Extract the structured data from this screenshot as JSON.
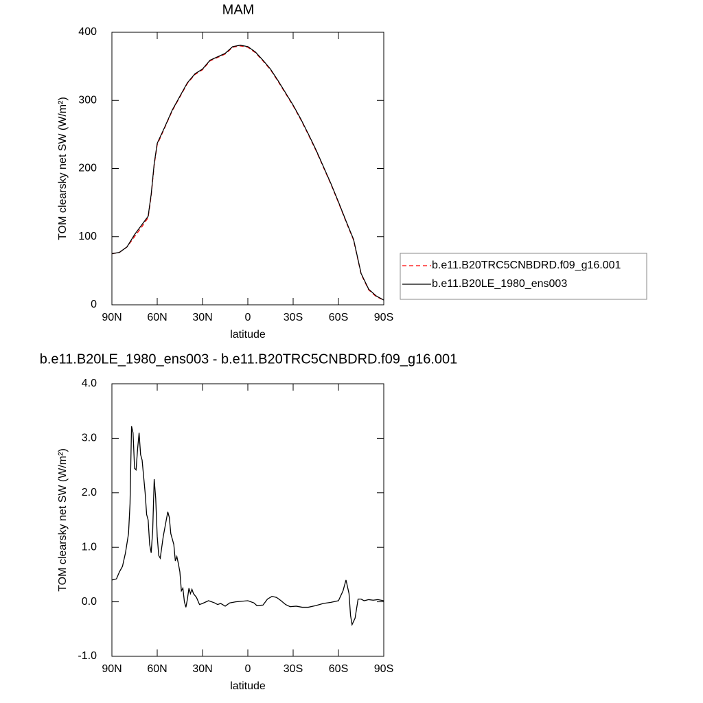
{
  "chart_data": [
    {
      "type": "line",
      "title": "MAM",
      "x_label": "latitude",
      "y_label": "TOM clearsky net SW (W/m²)",
      "xlim": [
        90,
        -90
      ],
      "xticks": [
        {
          "value": 90,
          "label": "90N"
        },
        {
          "value": 60,
          "label": "60N"
        },
        {
          "value": 30,
          "label": "30N"
        },
        0,
        {
          "value": -30,
          "label": "30S"
        },
        {
          "value": -60,
          "label": "60S"
        },
        {
          "value": -90,
          "label": "90S"
        }
      ],
      "ylim": [
        0,
        400
      ],
      "yticks": [
        0,
        100,
        200,
        300,
        400
      ],
      "legend": "right",
      "x": [
        90,
        85,
        80,
        75,
        70,
        66,
        64,
        62,
        60,
        55,
        50,
        45,
        40,
        35,
        30,
        25,
        20,
        15,
        10,
        5,
        0,
        -5,
        -10,
        -15,
        -20,
        -25,
        -30,
        -35,
        -40,
        -45,
        -50,
        -55,
        -60,
        -65,
        -70,
        -72,
        -75,
        -80,
        -85,
        -90
      ],
      "series": [
        {
          "name": "b.e11.B20TRC5CNBDRD.f09_g16.001",
          "color": "#ff0000",
          "line_style": "dashed",
          "values": [
            75,
            77,
            85,
            100,
            115,
            128,
            160,
            205,
            235,
            260,
            285,
            305,
            325,
            338,
            345,
            358,
            363,
            368,
            378,
            380,
            378,
            370,
            358,
            345,
            328,
            310,
            292,
            272,
            250,
            227,
            202,
            177,
            150,
            122,
            95,
            75,
            45,
            22,
            12,
            7
          ]
        },
        {
          "name": "b.e11.B20LE_1980_ens003",
          "color": "#000000",
          "line_style": "solid",
          "values": [
            75,
            77,
            85,
            103,
            118,
            130,
            162,
            207,
            237,
            261,
            286,
            306,
            326,
            339,
            346,
            359,
            364,
            369,
            379,
            381,
            379,
            371,
            359,
            346,
            329,
            311,
            293,
            273,
            251,
            228,
            203,
            178,
            151,
            123,
            96,
            76,
            46,
            23,
            13,
            7
          ]
        }
      ]
    },
    {
      "type": "line",
      "title": "b.e11.B20LE_1980_ens003 - b.e11.B20TRC5CNBDRD.f09_g16.001",
      "x_label": "latitude",
      "y_label": "TOM clearsky net SW (W/m²)",
      "xlim": [
        90,
        -90
      ],
      "xticks": [
        {
          "value": 90,
          "label": "90N"
        },
        {
          "value": 60,
          "label": "60N"
        },
        {
          "value": 30,
          "label": "30N"
        },
        0,
        {
          "value": -30,
          "label": "30S"
        },
        {
          "value": -60,
          "label": "60S"
        },
        {
          "value": -90,
          "label": "90S"
        }
      ],
      "ylim": [
        -1,
        4
      ],
      "yticks": [
        {
          "value": -1,
          "label": "-1.0"
        },
        {
          "value": 0,
          "label": "0.0"
        },
        {
          "value": 1,
          "label": "1.0"
        },
        {
          "value": 2,
          "label": "2.0"
        },
        {
          "value": 3,
          "label": "3.0"
        },
        {
          "value": 4,
          "label": "4.0"
        }
      ],
      "x": [
        90,
        87,
        85,
        83,
        81,
        79,
        78,
        77,
        76,
        75,
        74,
        73,
        72,
        71,
        70,
        68,
        67,
        66,
        65,
        64,
        63,
        62,
        61,
        60,
        59,
        58,
        56,
        54,
        53,
        52,
        51,
        49,
        48,
        47,
        46,
        45,
        44,
        43,
        42,
        41,
        40,
        39,
        38,
        37,
        36,
        34,
        32,
        30,
        26,
        22,
        20,
        18,
        15,
        12,
        8,
        0,
        -4,
        -6,
        -10,
        -13,
        -16,
        -19,
        -22,
        -25,
        -28,
        -32,
        -36,
        -40,
        -45,
        -50,
        -55,
        -60,
        -63,
        -65,
        -67,
        -68,
        -69,
        -71,
        -73,
        -75,
        -77,
        -80,
        -83,
        -86,
        -90
      ],
      "series": [
        {
          "color": "#000000",
          "line_style": "solid",
          "values": [
            0.4,
            0.42,
            0.55,
            0.65,
            0.9,
            1.25,
            1.8,
            3.22,
            3.1,
            2.45,
            2.42,
            2.8,
            3.1,
            2.7,
            2.6,
            2.0,
            1.6,
            1.5,
            1.05,
            0.9,
            1.3,
            2.25,
            1.9,
            1.2,
            0.85,
            0.8,
            1.2,
            1.5,
            1.65,
            1.55,
            1.25,
            1.05,
            0.75,
            0.83,
            0.7,
            0.55,
            0.2,
            0.25,
            0.0,
            -0.1,
            0.05,
            0.25,
            0.15,
            0.23,
            0.15,
            0.08,
            -0.05,
            -0.03,
            0.02,
            -0.02,
            -0.05,
            -0.03,
            -0.08,
            -0.02,
            0.0,
            0.02,
            -0.02,
            -0.07,
            -0.06,
            0.05,
            0.1,
            0.08,
            0.02,
            -0.05,
            -0.09,
            -0.08,
            -0.1,
            -0.1,
            -0.07,
            -0.03,
            -0.01,
            0.02,
            0.2,
            0.4,
            0.15,
            -0.25,
            -0.42,
            -0.3,
            0.05,
            0.05,
            0.02,
            0.04,
            0.03,
            0.04,
            0.02
          ]
        }
      ]
    }
  ]
}
